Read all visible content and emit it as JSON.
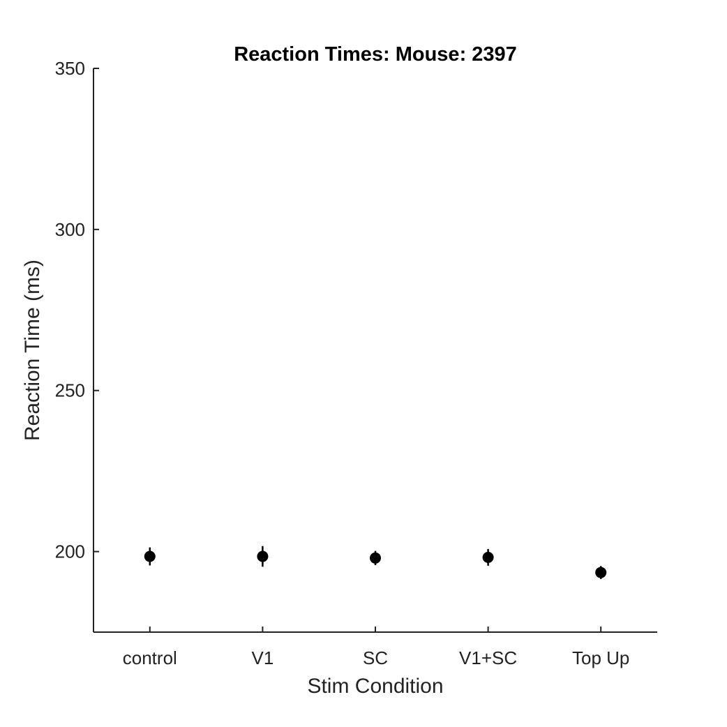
{
  "chart_data": {
    "type": "scatter",
    "title": "Reaction Times: Mouse: 2397",
    "xlabel": "Stim Condition",
    "ylabel": "Reaction Time (ms)",
    "categories": [
      "control",
      "V1",
      "SC",
      "V1+SC",
      "Top Up"
    ],
    "series": [
      {
        "values": [
          198.5,
          198.5,
          198.0,
          198.2,
          193.5
        ],
        "error": [
          2.8,
          3.2,
          2.2,
          2.6,
          2.0
        ]
      }
    ],
    "ylim": [
      175,
      350
    ],
    "yticks": [
      200,
      250,
      300,
      350
    ],
    "grid": false,
    "legend": "none",
    "colors": {
      "marker": "#000000",
      "axis": "#222222"
    }
  }
}
